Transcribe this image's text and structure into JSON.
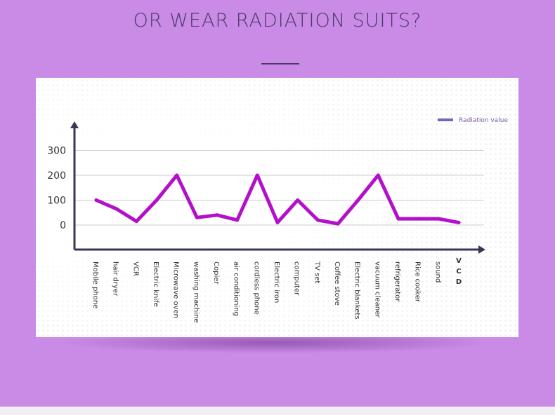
{
  "header": {
    "title": "OR WEAR RADIATION SUITS?"
  },
  "colors": {
    "background": "#c98be6",
    "line": "#b310c9",
    "axis": "#3d3355",
    "legend_swatch": "#7b64b8"
  },
  "chart_data": {
    "type": "line",
    "title": "",
    "xlabel": "",
    "ylabel": "",
    "ylim": [
      -100,
      400
    ],
    "yticks": [
      300,
      200,
      100,
      0
    ],
    "grid": true,
    "legend_position": "top-right",
    "categories": [
      "Mobile phone",
      "hair dryer",
      "VCR",
      "Electric knife",
      "Microwave oven",
      "washing machine",
      "Copier",
      "air conditioning",
      "cordless phone",
      "Electric iron",
      "computer",
      "TV set",
      "Coffee stove",
      "Electric blankets",
      "vacuum cleaner",
      "refrigerator",
      "Rice cooker",
      "sound",
      "V C D"
    ],
    "series": [
      {
        "name": "Radiation value",
        "values": [
          100,
          65,
          15,
          100,
          200,
          30,
          40,
          20,
          200,
          10,
          100,
          20,
          5,
          100,
          200,
          25,
          25,
          25,
          10
        ]
      }
    ]
  }
}
